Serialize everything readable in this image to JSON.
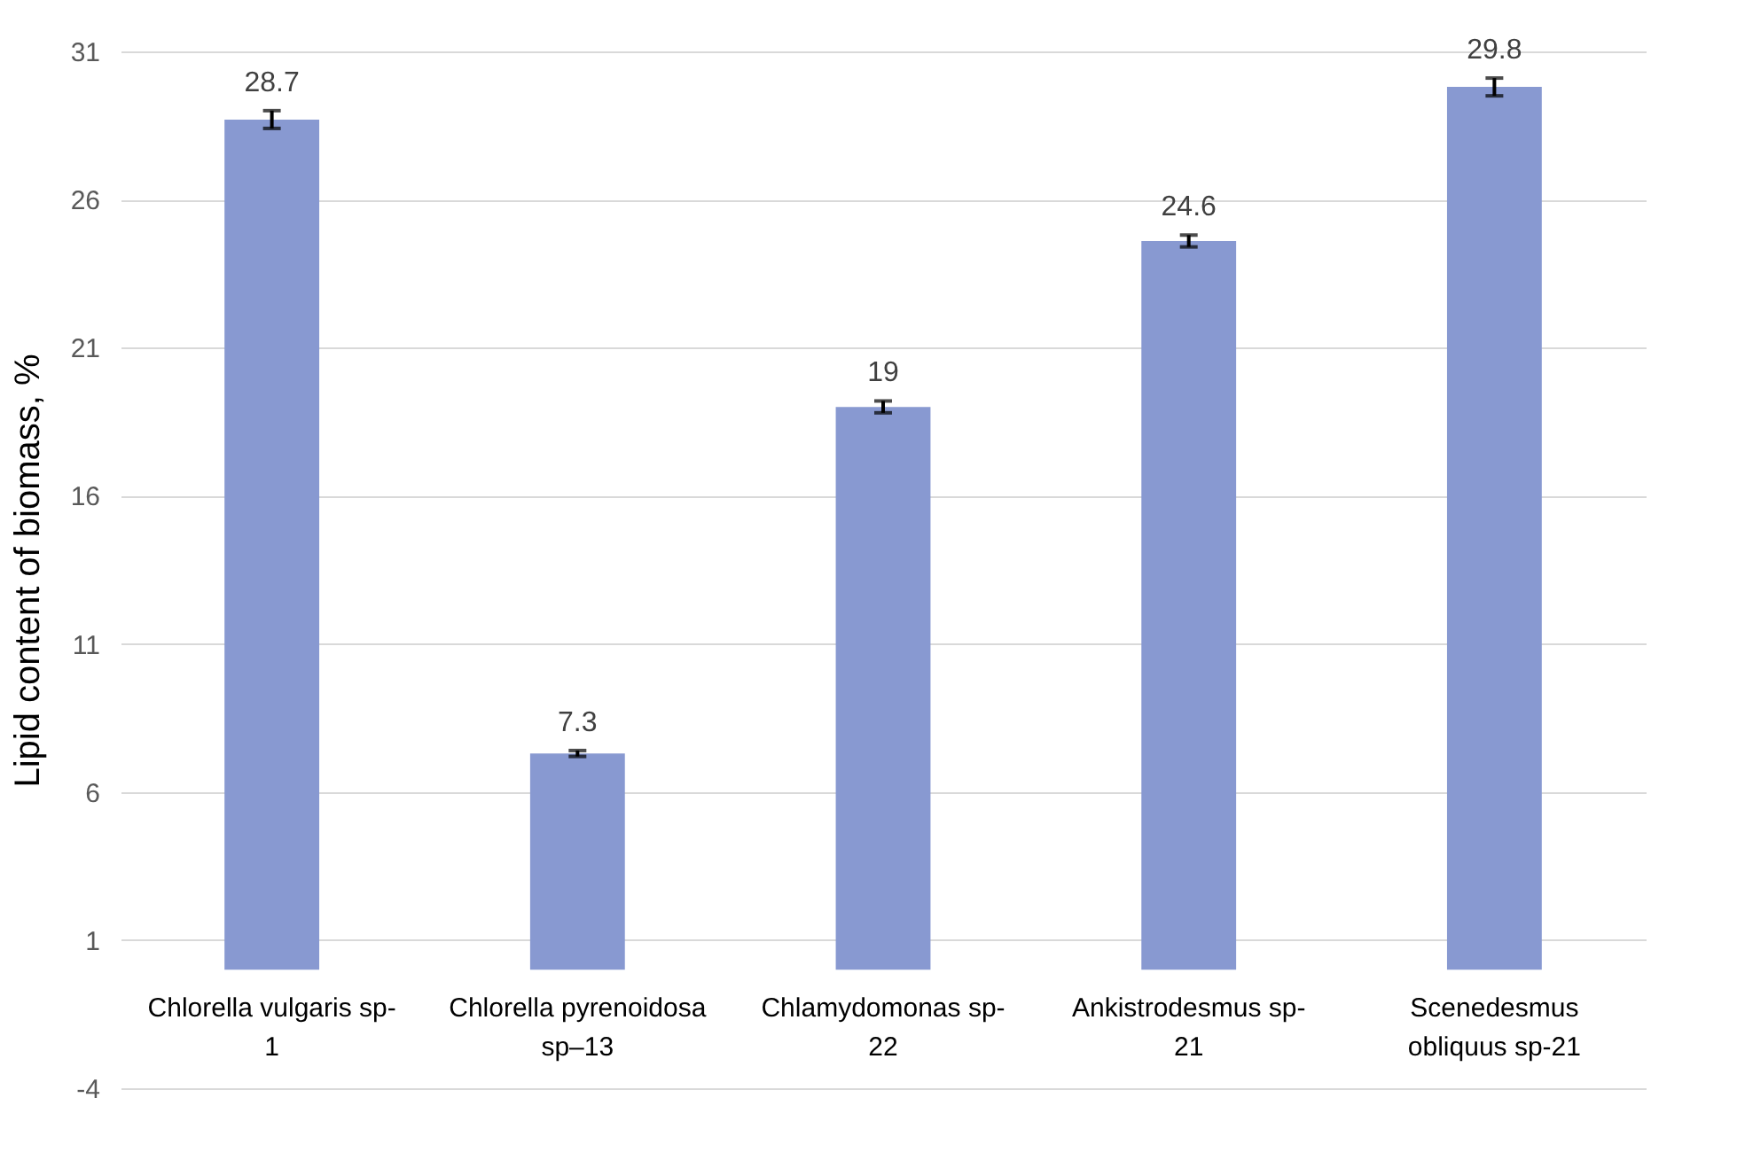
{
  "chart_data": {
    "type": "bar",
    "ylabel": "Lipid content of biomass, %",
    "categories": [
      "Chlorella vulgaris sp-\n1",
      "Chlorella pyrenoidosa\nsp–13",
      "Chlamydomonas sp-\n22",
      "Ankistrodesmus sp-\n21",
      "Scenedesmus\nobliquus sp-21"
    ],
    "values": [
      28.7,
      7.3,
      19,
      24.6,
      29.8
    ],
    "errors": [
      0.3,
      0.1,
      0.2,
      0.2,
      0.3
    ],
    "color": "#8899d1",
    "ylim": [
      -4,
      31
    ],
    "yticks": [
      -4,
      1,
      6,
      11,
      16,
      21,
      26,
      31
    ],
    "grid": "y",
    "data_labels": true
  }
}
